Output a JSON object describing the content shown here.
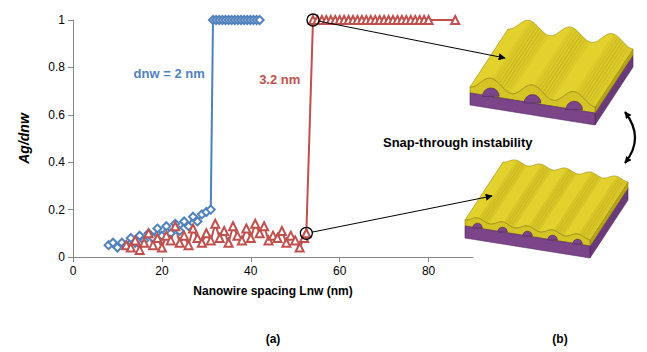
{
  "chart_data": {
    "type": "line",
    "x_label": "Nanowire spacing Lnw (nm)",
    "y_label": "Ag/dnw",
    "xlim": [
      0,
      90
    ],
    "xticks": [
      0,
      20,
      40,
      60,
      80
    ],
    "ylim": [
      0,
      1
    ],
    "yticks": [
      0,
      0.2,
      0.4,
      0.6,
      0.8,
      1
    ],
    "grid": false,
    "series": [
      {
        "name": "dnw = 2 nm",
        "color": "#4f81bd",
        "marker": "diamond",
        "x": [
          8,
          9,
          10,
          11,
          12,
          13,
          14,
          15,
          16,
          17,
          18,
          19,
          20,
          21,
          22,
          23,
          24,
          25,
          26,
          27,
          28,
          29,
          30,
          31,
          31.5,
          32.2,
          32.9,
          33.6,
          34.3,
          35,
          35.7,
          36.4,
          37.1,
          37.8,
          38.5,
          39.2,
          39.9,
          40.6,
          41.3,
          42
        ],
        "values": [
          0.05,
          0.06,
          0.04,
          0.06,
          0.05,
          0.08,
          0.06,
          0.09,
          0.07,
          0.1,
          0.08,
          0.12,
          0.09,
          0.13,
          0.1,
          0.14,
          0.11,
          0.15,
          0.13,
          0.17,
          0.15,
          0.18,
          0.19,
          0.2,
          1,
          1,
          1,
          1,
          1,
          1,
          1,
          1,
          1,
          1,
          1,
          1,
          1,
          1,
          1,
          1
        ]
      },
      {
        "name": "3.2 nm",
        "color": "#c0504d",
        "marker": "triangle",
        "x": [
          12,
          13,
          14,
          15,
          16,
          17,
          18,
          19,
          20,
          21,
          22,
          23,
          24,
          25,
          26,
          27,
          28,
          29,
          30,
          31,
          32,
          33,
          34,
          35,
          36,
          37,
          38,
          39,
          40,
          41,
          42,
          43,
          44,
          45,
          46,
          47,
          48,
          49,
          50,
          51,
          52,
          52.5,
          54,
          55,
          56,
          57,
          58,
          59,
          60,
          61,
          62,
          63,
          64,
          65,
          66,
          67,
          68,
          69,
          70,
          71,
          72,
          73,
          74,
          75,
          76,
          77,
          78,
          79,
          80,
          86
        ],
        "values": [
          0.05,
          0.04,
          0.07,
          0.03,
          0.06,
          0.1,
          0.05,
          0.08,
          0.04,
          0.09,
          0.07,
          0.13,
          0.06,
          0.09,
          0.05,
          0.12,
          0.08,
          0.06,
          0.1,
          0.07,
          0.14,
          0.08,
          0.11,
          0.06,
          0.13,
          0.09,
          0.07,
          0.12,
          0.08,
          0.14,
          0.1,
          0.13,
          0.07,
          0.09,
          0.08,
          0.11,
          0.06,
          0.09,
          0.07,
          0.04,
          0.08,
          0.1,
          1,
          1,
          1,
          1,
          1,
          1,
          1,
          1,
          1,
          1,
          1,
          1,
          1,
          1,
          1,
          1,
          1,
          1,
          1,
          1,
          1,
          1,
          1,
          1,
          1,
          1,
          1,
          1
        ]
      }
    ]
  },
  "panel_labels": [
    "(a)",
    "(b)"
  ],
  "diagram": {
    "label": "Snap-through instability"
  }
}
